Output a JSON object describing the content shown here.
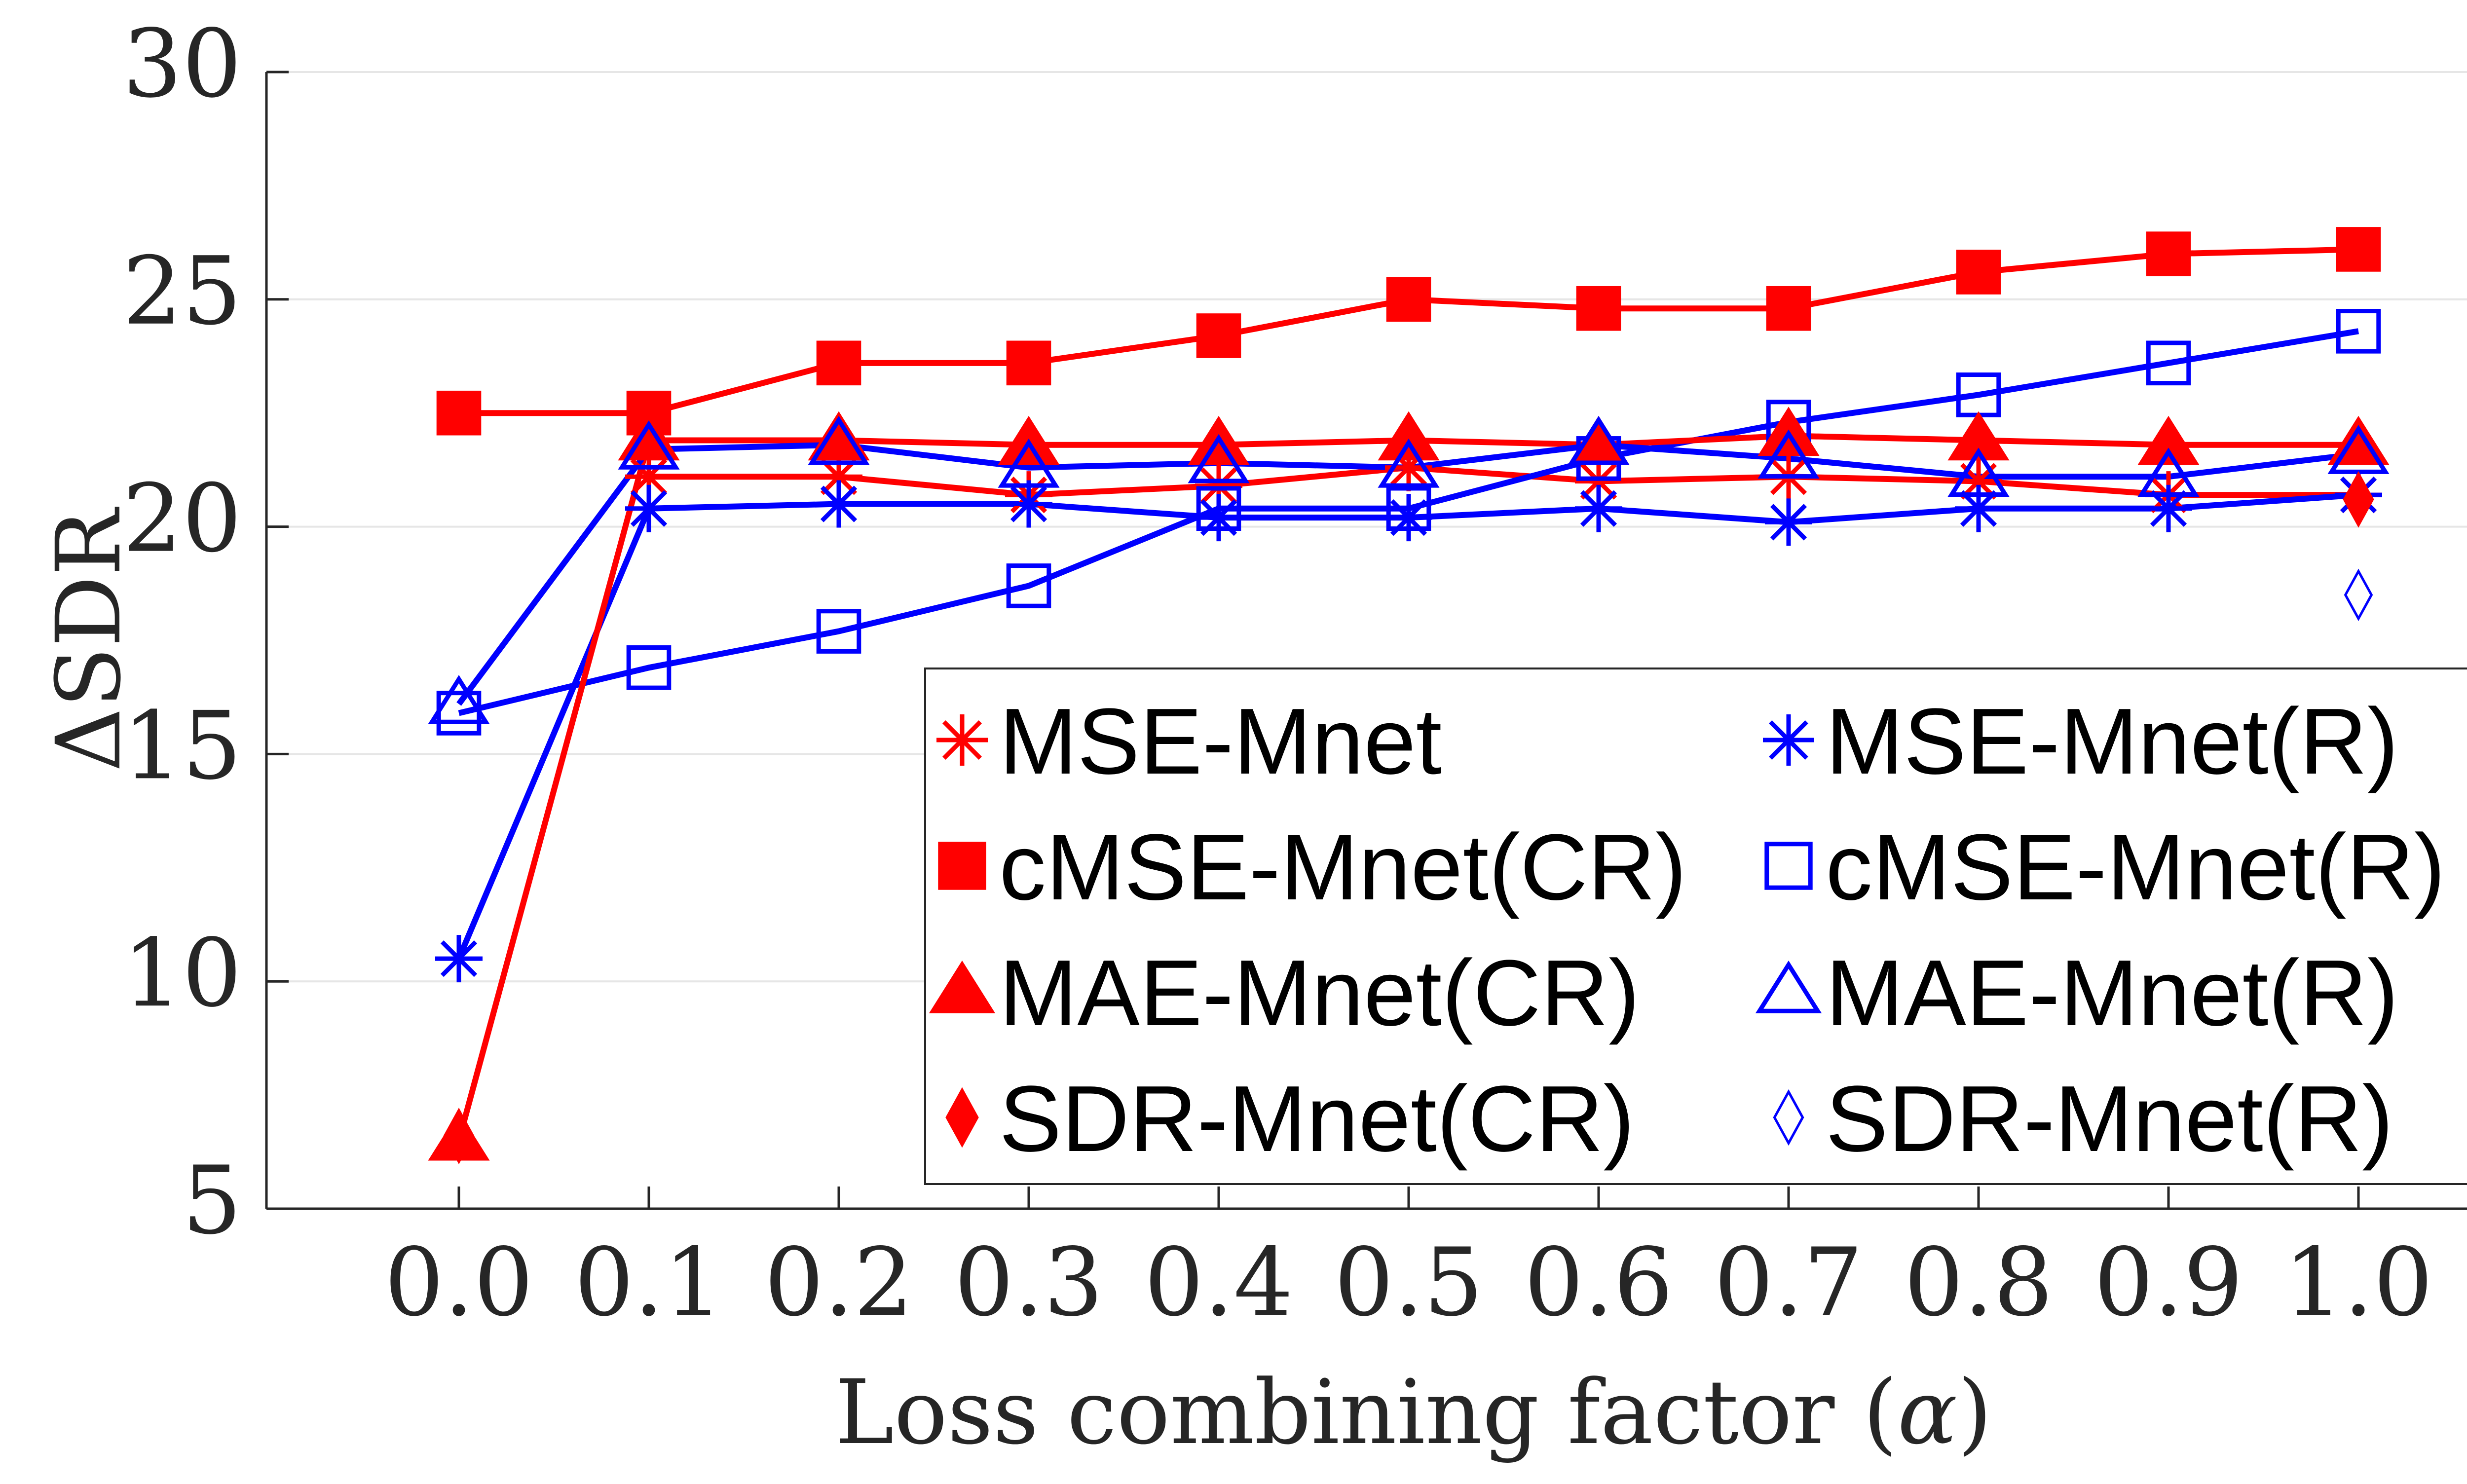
{
  "chart_data": {
    "type": "line",
    "title": "",
    "xlabel": "Loss combining factor",
    "xlabel_symbol": "α",
    "ylabel_prefix": "Δ",
    "ylabel": "SDR",
    "ylim": [
      5,
      30
    ],
    "yticks": [
      "5",
      "10",
      "15",
      "20",
      "25",
      "30"
    ],
    "categories": [
      "0.0",
      "0.1",
      "0.2",
      "0.3",
      "0.4",
      "0.5",
      "0.6",
      "0.7",
      "0.8",
      "0.9",
      "1.0"
    ],
    "grid": true,
    "legend_position": "bottom-right",
    "series": [
      {
        "name": "MSE-Mnet",
        "color": "#ff0000",
        "marker": "asterisk",
        "filled": true,
        "values": [
          null,
          21.1,
          21.1,
          20.7,
          20.9,
          21.3,
          21.0,
          21.1,
          21.0,
          20.7,
          20.7
        ]
      },
      {
        "name": "MSE-Mnet(R)",
        "color": "#0000ff",
        "marker": "asterisk",
        "filled": true,
        "values": [
          10.5,
          20.4,
          20.5,
          20.5,
          20.2,
          20.2,
          20.4,
          20.1,
          20.4,
          20.4,
          20.7
        ]
      },
      {
        "name": "cMSE-Mnet(CR)",
        "color": "#ff0000",
        "marker": "square",
        "filled": true,
        "values": [
          22.5,
          22.5,
          23.6,
          23.6,
          24.2,
          25.0,
          24.8,
          24.8,
          25.6,
          26.0,
          26.1
        ]
      },
      {
        "name": "cMSE-Mnet(R)",
        "color": "#0000ff",
        "marker": "square",
        "filled": false,
        "values": [
          15.9,
          16.9,
          17.7,
          18.7,
          20.4,
          20.4,
          21.5,
          22.3,
          22.9,
          23.6,
          24.3
        ]
      },
      {
        "name": "MAE-Mnet(CR)",
        "color": "#ff0000",
        "marker": "triangle",
        "filled": true,
        "values": [
          6.5,
          21.9,
          21.9,
          21.8,
          21.8,
          21.9,
          21.8,
          22.0,
          21.9,
          21.8,
          21.8
        ]
      },
      {
        "name": "MAE-Mnet(R)",
        "color": "#0000ff",
        "marker": "triangle",
        "filled": false,
        "values": [
          16.1,
          21.7,
          21.8,
          21.3,
          21.4,
          21.3,
          21.8,
          21.5,
          21.1,
          21.1,
          21.6
        ]
      },
      {
        "name": "SDR-Mnet(CR)",
        "color": "#ff0000",
        "marker": "diamond",
        "filled": true,
        "values": [
          6.6,
          null,
          null,
          null,
          null,
          null,
          null,
          null,
          null,
          null,
          20.6
        ]
      },
      {
        "name": "SDR-Mnet(R)",
        "color": "#0000ff",
        "marker": "diamond",
        "filled": false,
        "values": [
          null,
          null,
          null,
          null,
          null,
          null,
          null,
          null,
          null,
          null,
          18.5
        ]
      }
    ]
  }
}
